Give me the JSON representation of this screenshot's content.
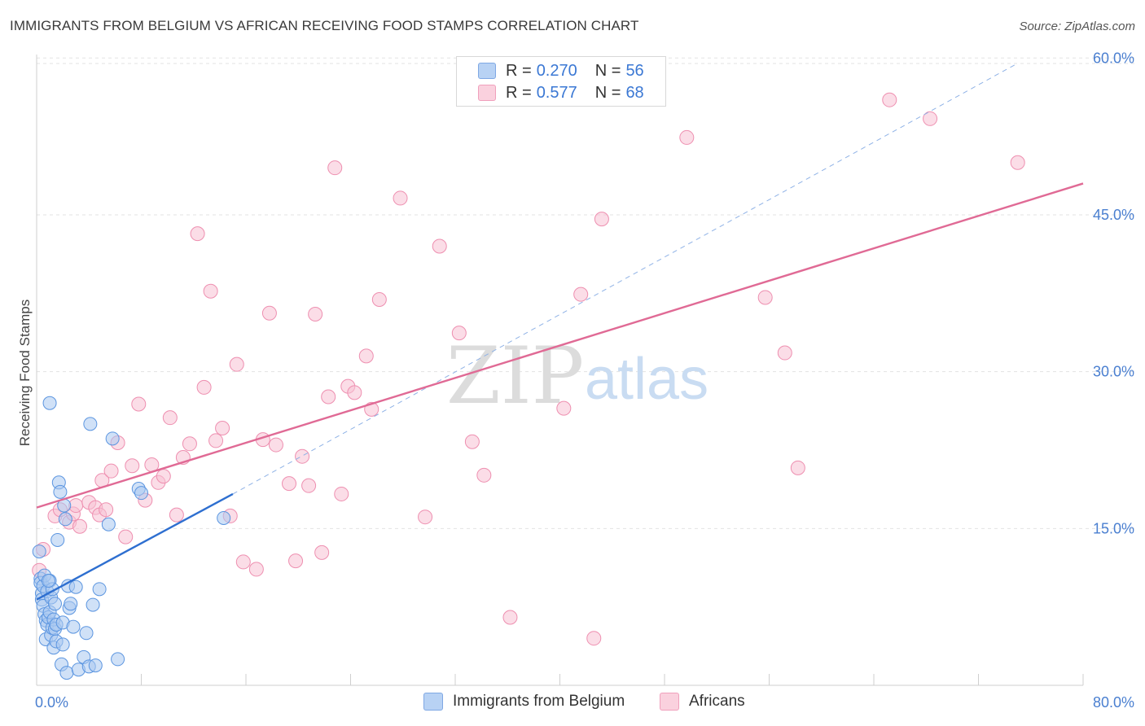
{
  "header": {
    "title": "IMMIGRANTS FROM BELGIUM VS AFRICAN RECEIVING FOOD STAMPS CORRELATION CHART",
    "source": "Source: ZipAtlas.com"
  },
  "colors": {
    "blue_fill": "#a9c8f0",
    "blue_stroke": "#5b95e0",
    "blue_line": "#2e6fd0",
    "pink_fill": "#f7c1d3",
    "pink_stroke": "#ee8fb0",
    "pink_line": "#e06a95",
    "tick_text": "#4a7fd0",
    "grid": "#e3e3e3"
  },
  "legend": {
    "rows": [
      {
        "r_label": "R =",
        "r_value": "0.270",
        "n_label": "N =",
        "n_value": "56",
        "series": "blue"
      },
      {
        "r_label": "R =",
        "r_value": "0.577",
        "n_label": "N =",
        "n_value": "68",
        "series": "pink"
      }
    ]
  },
  "bottom_legend": {
    "items": [
      {
        "label": "Immigrants from Belgium",
        "series": "blue"
      },
      {
        "label": "Africans",
        "series": "pink"
      }
    ]
  },
  "watermark": {
    "zip": "ZIP",
    "atlas": "atlas"
  },
  "chart_data": {
    "type": "scatter",
    "title": "IMMIGRANTS FROM BELGIUM VS AFRICAN RECEIVING FOOD STAMPS CORRELATION CHART",
    "xlabel": "",
    "ylabel": "Receiving Food Stamps",
    "xlim": [
      0,
      80
    ],
    "ylim": [
      0,
      62
    ],
    "x_tick_labels": {
      "left": "0.0%",
      "right": "80.0%"
    },
    "y_ticks": [
      15,
      30,
      45,
      60
    ],
    "y_tick_labels": [
      "15.0%",
      "30.0%",
      "45.0%",
      "60.0%"
    ],
    "grid": true,
    "series": [
      {
        "name": "Immigrants from Belgium",
        "color": "blue",
        "r": 0.27,
        "n": 56,
        "trend": {
          "x0": 0,
          "y0": 8.2,
          "x1": 15,
          "y1": 18.3,
          "dashed_to_x": 75,
          "dashed_to_y": 59.5
        },
        "points": [
          [
            0.2,
            12.8
          ],
          [
            0.3,
            10.2
          ],
          [
            0.3,
            9.8
          ],
          [
            0.4,
            8.8
          ],
          [
            0.4,
            8.2
          ],
          [
            0.5,
            7.6
          ],
          [
            0.5,
            9.5
          ],
          [
            0.6,
            10.5
          ],
          [
            0.6,
            6.8
          ],
          [
            0.7,
            6.2
          ],
          [
            0.7,
            4.4
          ],
          [
            0.8,
            5.8
          ],
          [
            0.8,
            9.0
          ],
          [
            0.9,
            6.5
          ],
          [
            1.0,
            7.0
          ],
          [
            1.0,
            10.0
          ],
          [
            1.1,
            8.4
          ],
          [
            1.1,
            4.8
          ],
          [
            1.2,
            5.5
          ],
          [
            1.2,
            9.2
          ],
          [
            1.3,
            6.3
          ],
          [
            1.3,
            3.6
          ],
          [
            1.4,
            7.8
          ],
          [
            1.4,
            5.4
          ],
          [
            1.5,
            5.8
          ],
          [
            1.5,
            4.2
          ],
          [
            1.6,
            13.9
          ],
          [
            1.7,
            19.4
          ],
          [
            1.8,
            18.5
          ],
          [
            1.9,
            2.0
          ],
          [
            2.0,
            6.0
          ],
          [
            2.1,
            17.2
          ],
          [
            2.2,
            15.9
          ],
          [
            2.3,
            1.2
          ],
          [
            2.4,
            9.5
          ],
          [
            2.5,
            7.4
          ],
          [
            2.6,
            7.8
          ],
          [
            2.8,
            5.6
          ],
          [
            3.0,
            9.4
          ],
          [
            3.2,
            1.5
          ],
          [
            3.6,
            2.7
          ],
          [
            3.8,
            5.0
          ],
          [
            4.0,
            1.8
          ],
          [
            4.1,
            25.0
          ],
          [
            4.3,
            7.7
          ],
          [
            4.5,
            1.9
          ],
          [
            4.8,
            9.2
          ],
          [
            1.0,
            27.0
          ],
          [
            5.5,
            15.4
          ],
          [
            5.8,
            23.6
          ],
          [
            6.2,
            2.5
          ],
          [
            7.8,
            18.8
          ],
          [
            8.0,
            18.4
          ],
          [
            14.3,
            16.0
          ],
          [
            0.9,
            10.0
          ],
          [
            2.0,
            3.9
          ]
        ]
      },
      {
        "name": "Africans",
        "color": "pink",
        "r": 0.577,
        "n": 68,
        "trend": {
          "x0": 0,
          "y0": 17.0,
          "x1": 80,
          "y1": 48.0
        },
        "points": [
          [
            0.2,
            11.0
          ],
          [
            0.5,
            13.0
          ],
          [
            1.4,
            16.2
          ],
          [
            1.8,
            16.8
          ],
          [
            2.5,
            15.6
          ],
          [
            2.8,
            16.4
          ],
          [
            3.0,
            17.2
          ],
          [
            3.3,
            15.2
          ],
          [
            4.0,
            17.5
          ],
          [
            4.5,
            17.0
          ],
          [
            4.8,
            16.3
          ],
          [
            5.0,
            19.6
          ],
          [
            5.3,
            16.8
          ],
          [
            5.7,
            20.5
          ],
          [
            6.2,
            23.2
          ],
          [
            6.8,
            14.2
          ],
          [
            7.3,
            21.0
          ],
          [
            7.8,
            26.9
          ],
          [
            8.3,
            17.7
          ],
          [
            8.8,
            21.1
          ],
          [
            9.3,
            19.4
          ],
          [
            9.7,
            20.0
          ],
          [
            10.2,
            25.6
          ],
          [
            10.7,
            16.3
          ],
          [
            11.2,
            21.8
          ],
          [
            11.7,
            23.1
          ],
          [
            12.3,
            43.2
          ],
          [
            12.8,
            28.5
          ],
          [
            13.3,
            37.7
          ],
          [
            13.7,
            23.4
          ],
          [
            14.2,
            24.6
          ],
          [
            14.8,
            16.2
          ],
          [
            15.3,
            30.7
          ],
          [
            15.8,
            11.8
          ],
          [
            16.8,
            11.1
          ],
          [
            17.3,
            23.5
          ],
          [
            17.8,
            35.6
          ],
          [
            18.3,
            23.0
          ],
          [
            19.3,
            19.3
          ],
          [
            19.8,
            11.9
          ],
          [
            20.3,
            21.9
          ],
          [
            20.8,
            19.1
          ],
          [
            21.3,
            35.5
          ],
          [
            21.8,
            12.7
          ],
          [
            22.3,
            27.6
          ],
          [
            22.8,
            49.5
          ],
          [
            23.3,
            18.3
          ],
          [
            23.8,
            28.6
          ],
          [
            24.3,
            28.0
          ],
          [
            25.2,
            31.5
          ],
          [
            25.6,
            26.4
          ],
          [
            26.2,
            36.9
          ],
          [
            27.8,
            46.6
          ],
          [
            29.7,
            16.1
          ],
          [
            30.8,
            42.0
          ],
          [
            32.3,
            33.7
          ],
          [
            33.3,
            23.3
          ],
          [
            34.2,
            20.1
          ],
          [
            36.2,
            6.5
          ],
          [
            40.3,
            26.5
          ],
          [
            41.6,
            37.4
          ],
          [
            42.6,
            4.5
          ],
          [
            43.2,
            44.6
          ],
          [
            49.7,
            52.4
          ],
          [
            55.7,
            37.1
          ],
          [
            57.2,
            31.8
          ],
          [
            58.2,
            20.8
          ],
          [
            65.2,
            56.0
          ]
        ]
      }
    ],
    "extra_pink_points": [
      [
        68.3,
        54.2
      ],
      [
        75.0,
        50.0
      ]
    ]
  }
}
